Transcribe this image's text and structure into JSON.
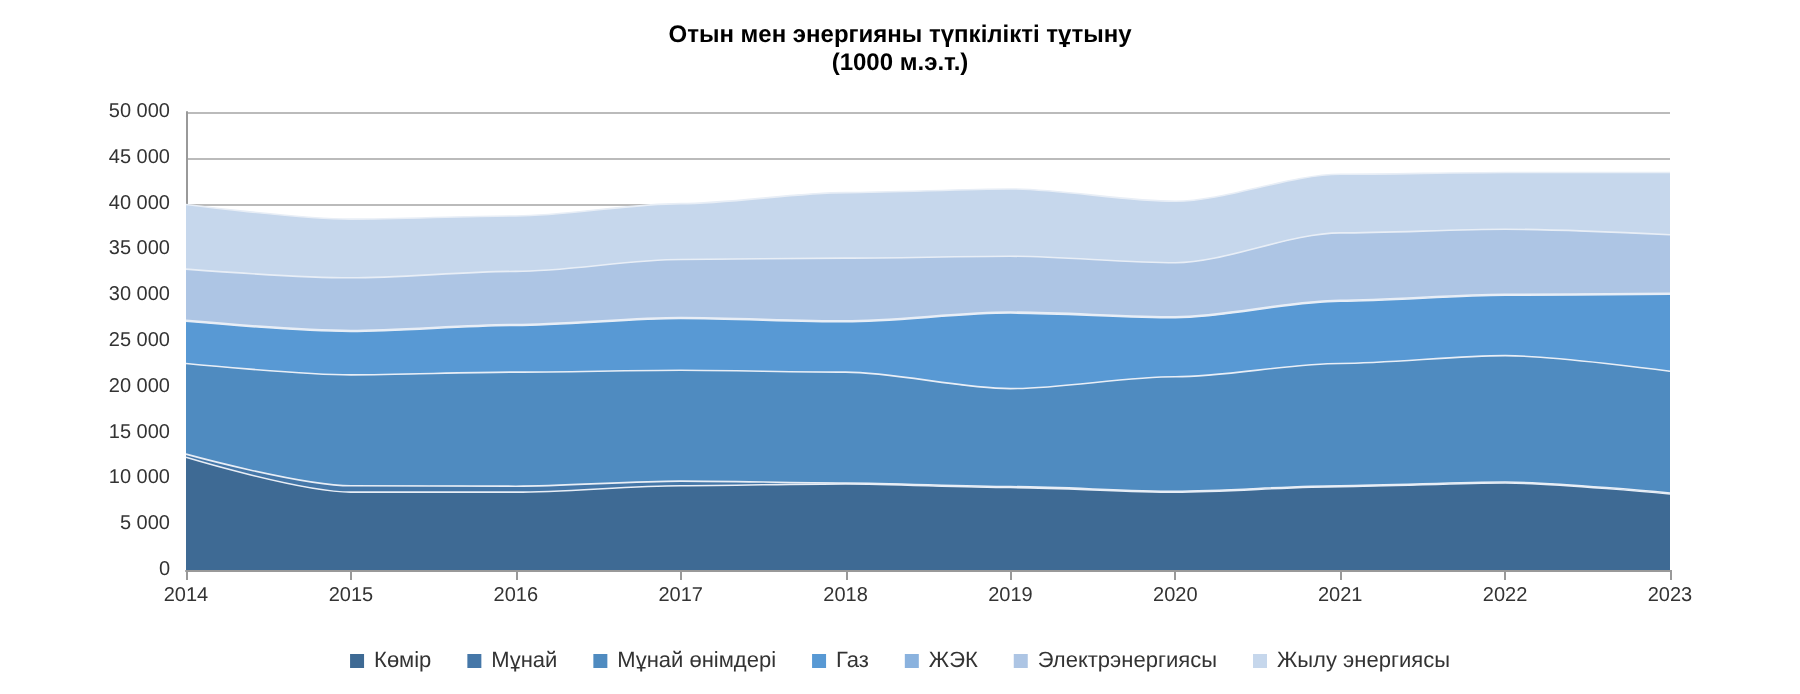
{
  "chart_data": {
    "type": "area",
    "stacked": true,
    "title": "Отын мен энергияны түпкілікті тұтыну",
    "subtitle": "(1000 м.э.т.)",
    "categories": [
      "2014",
      "2015",
      "2016",
      "2017",
      "2018",
      "2019",
      "2020",
      "2021",
      "2022",
      "2023"
    ],
    "series": [
      {
        "name": "Көмір",
        "color": "#3e6a94",
        "values": [
          12300,
          8500,
          8500,
          9200,
          9400,
          9000,
          8500,
          9100,
          9500,
          8300
        ]
      },
      {
        "name": "Мұнай",
        "color": "#4577a8",
        "values": [
          350,
          700,
          650,
          500,
          100,
          100,
          100,
          100,
          100,
          100
        ]
      },
      {
        "name": "Мұнай өнімдері",
        "color": "#4f8bc0",
        "values": [
          9900,
          12100,
          12450,
          12100,
          12100,
          10700,
          12500,
          13350,
          13800,
          13300
        ]
      },
      {
        "name": "Газ",
        "color": "#5899d4",
        "values": [
          4600,
          4750,
          5100,
          5650,
          5500,
          8250,
          6450,
          6800,
          6600,
          8400
        ]
      },
      {
        "name": "ЖЭК",
        "color": "#8ab2de",
        "values": [
          100,
          100,
          100,
          100,
          100,
          100,
          100,
          100,
          100,
          100
        ]
      },
      {
        "name": "Электрэнергиясы",
        "color": "#adc5e4",
        "values": [
          5600,
          5750,
          5800,
          6350,
          6850,
          6100,
          5900,
          7350,
          7100,
          6400
        ]
      },
      {
        "name": "Жылу энергиясы",
        "color": "#c6d7ec",
        "values": [
          7050,
          6400,
          6050,
          6100,
          7150,
          7350,
          6700,
          6400,
          6200,
          6800
        ]
      }
    ],
    "ylim": [
      0,
      50000
    ],
    "yticks": [
      0,
      {
        "value": 5000,
        "label": "5 000"
      },
      {
        "value": 10000,
        "label": "10 000"
      },
      {
        "value": 15000,
        "label": "15 000"
      },
      {
        "value": 20000,
        "label": "20 000"
      },
      {
        "value": 25000,
        "label": "25 000"
      },
      {
        "value": 30000,
        "label": "30 000"
      },
      {
        "value": 35000,
        "label": "35 000"
      },
      {
        "value": 40000,
        "label": "40 000"
      },
      {
        "value": 45000,
        "label": "45 000"
      },
      {
        "value": 50000,
        "label": "50 000"
      }
    ],
    "grid": "y",
    "legend": "bottom"
  }
}
